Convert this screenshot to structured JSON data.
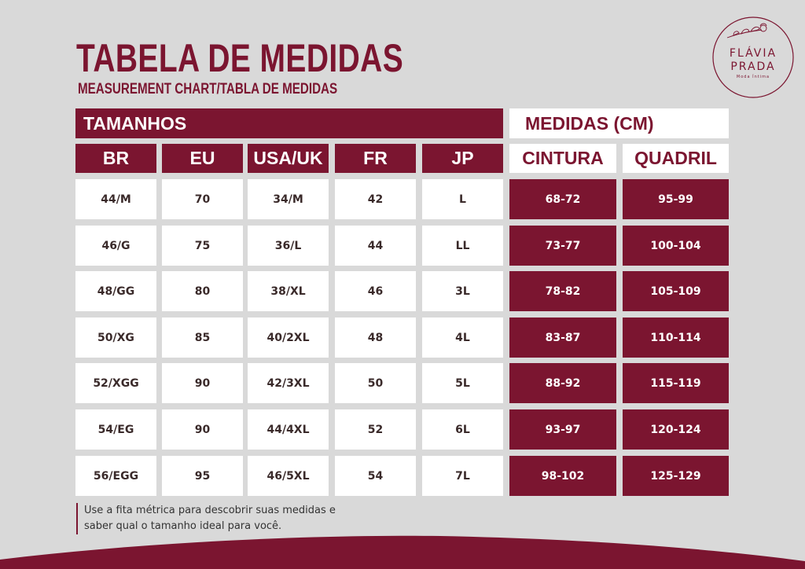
{
  "title": "TABELA DE MEDIDAS",
  "subtitle": "MEASUREMENT CHART/TABLA DE MEDIDAS",
  "logo": {
    "line1": "FLÁVIA",
    "line2": "PRADA",
    "tagline": "Moda Íntima"
  },
  "section_sizes": "TAMANHOS",
  "section_measures": "MEDIDAS (CM)",
  "headers": [
    "BR",
    "EU",
    "USA/UK",
    "FR",
    "JP",
    "CINTURA",
    "QUADRIL"
  ],
  "rows": [
    [
      "44/M",
      "70",
      "34/M",
      "42",
      "L",
      "68-72",
      "95-99"
    ],
    [
      "46/G",
      "75",
      "36/L",
      "44",
      "LL",
      "73-77",
      "100-104"
    ],
    [
      "48/GG",
      "80",
      "38/XL",
      "46",
      "3L",
      "78-82",
      "105-109"
    ],
    [
      "50/XG",
      "85",
      "40/2XL",
      "48",
      "4L",
      "83-87",
      "110-114"
    ],
    [
      "52/XGG",
      "90",
      "42/3XL",
      "50",
      "5L",
      "88-92",
      "115-119"
    ],
    [
      "54/EG",
      "90",
      "44/4XL",
      "52",
      "6L",
      "93-97",
      "120-124"
    ],
    [
      "56/EGG",
      "95",
      "46/5XL",
      "54",
      "7L",
      "98-102",
      "125-129"
    ]
  ],
  "note": {
    "line1": "Use a fita métrica para descobrir suas medidas e",
    "line2": "saber qual o tamanho ideal para você."
  },
  "colors": {
    "brand": "#7b1530",
    "background": "#d9d9d9",
    "cell": "#ffffff"
  }
}
